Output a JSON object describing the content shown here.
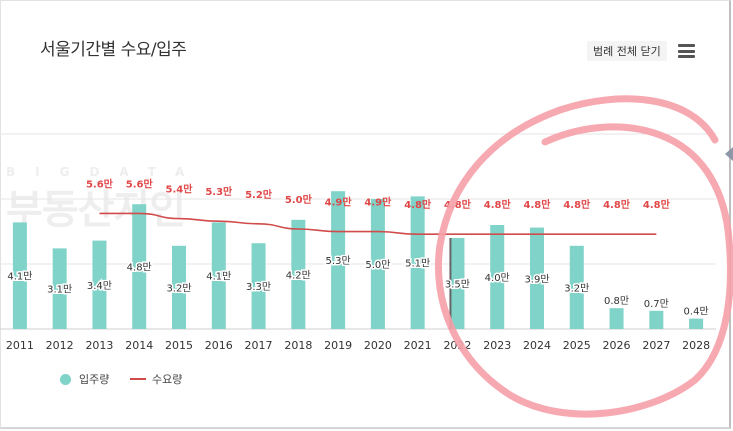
{
  "header": {
    "title": "서울기간별 수요/입주",
    "legend_toggle_label": "범례 전체 닫기",
    "menu_icon": "hamburger-menu-icon"
  },
  "watermark": {
    "small_text": "BIGDATA",
    "big_text": "부동산지인"
  },
  "legend": {
    "items": [
      {
        "label": "입주량",
        "icon": "circle-marker",
        "color": "#7fd3c8"
      },
      {
        "label": "수요량",
        "icon": "line-marker",
        "color": "#d14b4b"
      }
    ]
  },
  "colors": {
    "bar": "#7fd3c8",
    "line": "#d14b4b",
    "demand_label": "#e04848",
    "grid": "#e6e6e6",
    "highlight_circle": "#f6a0a8",
    "highlight_bar_edge": "#666666"
  },
  "chart_data": {
    "type": "bar",
    "unit": "만",
    "categories": [
      "2011",
      "2012",
      "2013",
      "2014",
      "2015",
      "2016",
      "2017",
      "2018",
      "2019",
      "2020",
      "2021",
      "2022",
      "2023",
      "2024",
      "2025",
      "2026",
      "2027",
      "2028"
    ],
    "series": [
      {
        "name": "입주량",
        "type": "bar",
        "values": [
          4.1,
          3.1,
          3.4,
          4.8,
          3.2,
          4.1,
          3.3,
          4.2,
          5.3,
          5.0,
          5.1,
          3.5,
          4.0,
          3.9,
          3.2,
          0.8,
          0.7,
          0.4
        ],
        "labels": [
          "4.1만",
          "3.1만",
          "3.4만",
          "4.8만",
          "3.2만",
          "4.1만",
          "3.3만",
          "4.2만",
          "5.3만",
          "5.0만",
          "5.1만",
          "3.5만",
          "4.0만",
          "3.9만",
          "3.2만",
          "0.8만",
          "0.7만",
          "0.4만"
        ]
      },
      {
        "name": "수요량",
        "type": "line",
        "values": [
          null,
          null,
          5.6,
          5.6,
          5.4,
          5.3,
          5.2,
          5.0,
          4.9,
          4.9,
          4.8,
          4.8,
          4.8,
          4.8,
          4.8,
          4.8,
          4.8,
          null
        ],
        "labels": [
          null,
          null,
          "5.6만",
          "5.6만",
          "5.4만",
          "5.3만",
          "5.2만",
          "5.0만",
          "4.9만",
          "4.9만",
          "4.8만",
          "4.8만",
          "4.8만",
          "4.8만",
          "4.8만",
          "4.8만",
          "4.8만",
          null
        ]
      }
    ],
    "ylim": [
      0,
      7.5
    ],
    "grid": true,
    "legend_position": "bottom-left",
    "highlight": {
      "shape": "hand-drawn circle",
      "covers_categories": [
        "2022",
        "2023",
        "2024",
        "2025",
        "2026",
        "2027",
        "2028"
      ]
    },
    "emphasized_category": "2022"
  }
}
